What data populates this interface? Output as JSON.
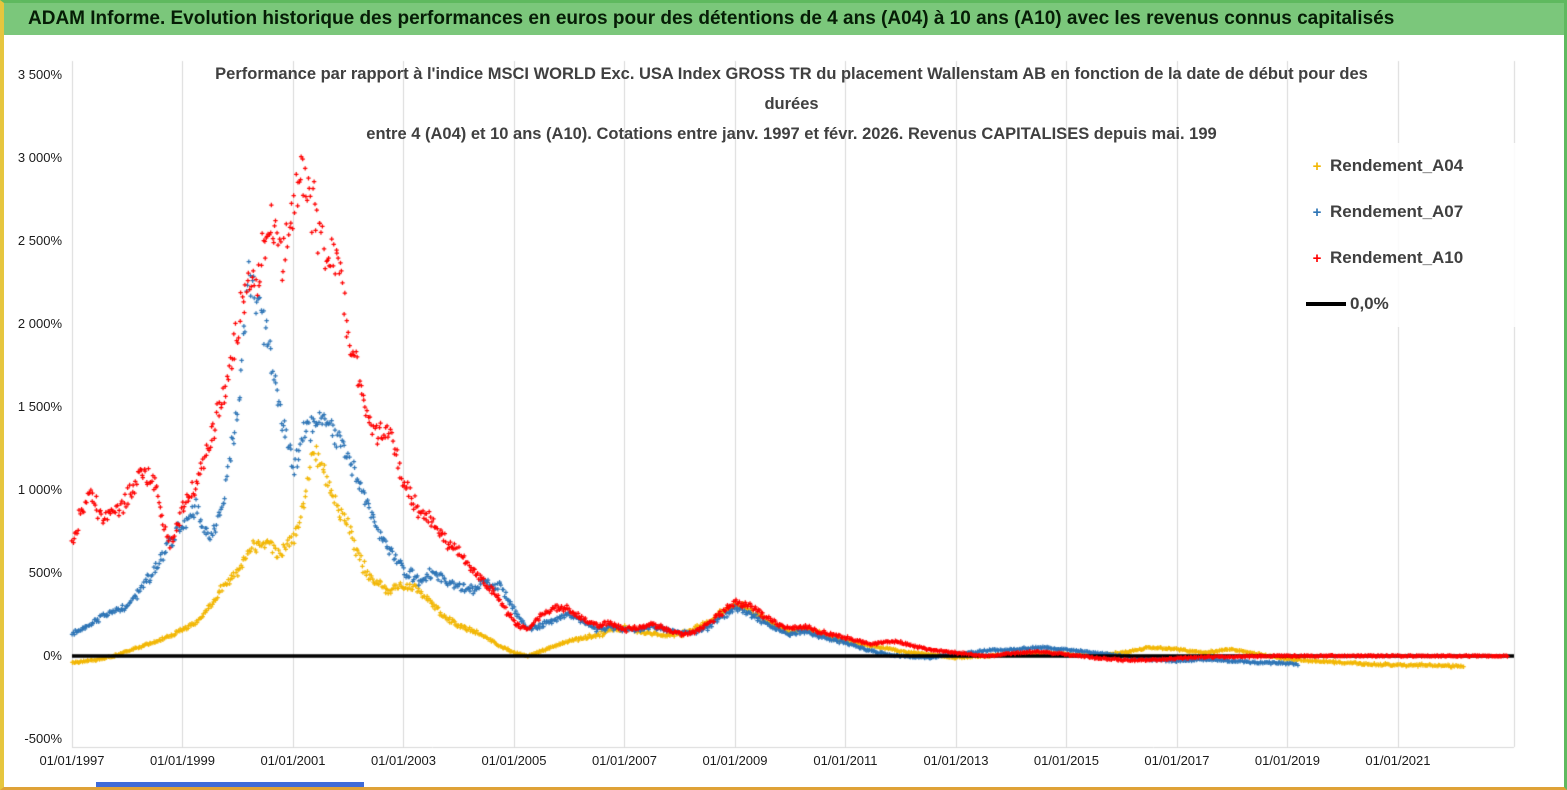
{
  "window": {
    "header_title": "ADAM Informe. Evolution historique des performances en euros pour des détentions de 4 ans (A04) à 10 ans (A10) avec les revenus connus capitalisés",
    "theme": {
      "header_bg": "#7bc77b",
      "frame_green": "#5fb95f",
      "frame_yellow": "#e6c63e",
      "frame_orange": "#dfa237",
      "scrollbar_blue": "#3f6bd8",
      "grid_gray": "#d9d9d9",
      "title_gray": "#404040"
    }
  },
  "chart_data": {
    "type": "scatter",
    "marker": "+",
    "grid": "vertical-only",
    "legend_position": "top-right",
    "title_lines": [
      "Performance par rapport à l'indice MSCI WORLD Exc. USA Index GROSS TR  du placement Wallenstam AB en fonction de la date de début pour des",
      "durées",
      "entre 4 (A04) et 10 ans (A10).  Cotations entre janv. 1997 et févr. 2026. Revenus CAPITALISES depuis mai. 199"
    ],
    "x_axis": {
      "ticks": [
        "01/01/1997",
        "01/01/1999",
        "01/01/2001",
        "01/01/2003",
        "01/01/2005",
        "01/01/2007",
        "01/01/2009",
        "01/01/2011",
        "01/01/2013",
        "01/01/2015",
        "01/01/2017",
        "01/01/2019",
        "01/01/2021"
      ],
      "tick_years": [
        1997,
        1999,
        2001,
        2003,
        2005,
        2007,
        2009,
        2011,
        2013,
        2015,
        2017,
        2019,
        2021
      ],
      "range": [
        1997,
        2023.1
      ]
    },
    "y_axis": {
      "ticks": [
        "3 500%",
        "3 000%",
        "2 500%",
        "2 000%",
        "1 500%",
        "1 000%",
        "500%",
        "0%",
        "-500%"
      ],
      "min": -500,
      "max": 3500,
      "step": 500,
      "unit": "%"
    },
    "zero_line": {
      "label": "0,0%",
      "color": "#000000",
      "value": 0
    },
    "series": [
      {
        "name": "Rendement_A04",
        "color": "#f2b705",
        "points": [
          [
            1997.0,
            -40
          ],
          [
            1997.25,
            -30
          ],
          [
            1997.5,
            -20
          ],
          [
            1997.75,
            0
          ],
          [
            1998.0,
            30
          ],
          [
            1998.25,
            55
          ],
          [
            1998.5,
            85
          ],
          [
            1998.75,
            120
          ],
          [
            1999.0,
            155
          ],
          [
            1999.25,
            200
          ],
          [
            1999.5,
            300
          ],
          [
            1999.75,
            430
          ],
          [
            2000.0,
            510
          ],
          [
            2000.25,
            640
          ],
          [
            2000.5,
            700
          ],
          [
            2000.75,
            620
          ],
          [
            2001.0,
            700
          ],
          [
            2001.2,
            900
          ],
          [
            2001.35,
            1250
          ],
          [
            2001.5,
            1150
          ],
          [
            2001.75,
            950
          ],
          [
            2002.0,
            780
          ],
          [
            2002.25,
            550
          ],
          [
            2002.5,
            430
          ],
          [
            2002.75,
            400
          ],
          [
            2003.0,
            420
          ],
          [
            2003.25,
            410
          ],
          [
            2003.5,
            330
          ],
          [
            2003.75,
            230
          ],
          [
            2004.0,
            180
          ],
          [
            2004.25,
            150
          ],
          [
            2004.5,
            115
          ],
          [
            2004.75,
            60
          ],
          [
            2005.0,
            20
          ],
          [
            2005.25,
            0
          ],
          [
            2005.5,
            30
          ],
          [
            2005.75,
            60
          ],
          [
            2006.0,
            90
          ],
          [
            2006.25,
            110
          ],
          [
            2006.5,
            125
          ],
          [
            2006.75,
            150
          ],
          [
            2007.0,
            170
          ],
          [
            2007.25,
            150
          ],
          [
            2007.5,
            135
          ],
          [
            2007.75,
            120
          ],
          [
            2008.0,
            130
          ],
          [
            2008.25,
            160
          ],
          [
            2008.5,
            205
          ],
          [
            2008.75,
            260
          ],
          [
            2009.0,
            310
          ],
          [
            2009.25,
            280
          ],
          [
            2009.5,
            230
          ],
          [
            2009.75,
            180
          ],
          [
            2010.0,
            150
          ],
          [
            2010.25,
            170
          ],
          [
            2010.5,
            140
          ],
          [
            2010.75,
            110
          ],
          [
            2011.0,
            90
          ],
          [
            2011.25,
            70
          ],
          [
            2011.5,
            60
          ],
          [
            2011.75,
            45
          ],
          [
            2012.0,
            30
          ],
          [
            2012.25,
            20
          ],
          [
            2012.5,
            10
          ],
          [
            2012.75,
            0
          ],
          [
            2013.0,
            -10
          ],
          [
            2013.5,
            0
          ],
          [
            2014.0,
            10
          ],
          [
            2014.5,
            20
          ],
          [
            2015.0,
            10
          ],
          [
            2015.5,
            0
          ],
          [
            2016.0,
            20
          ],
          [
            2016.5,
            50
          ],
          [
            2017.0,
            40
          ],
          [
            2017.5,
            20
          ],
          [
            2018.0,
            40
          ],
          [
            2018.5,
            10
          ],
          [
            2019.0,
            -20
          ],
          [
            2019.5,
            -30
          ],
          [
            2020.0,
            -40
          ],
          [
            2020.5,
            -50
          ],
          [
            2021.0,
            -55
          ],
          [
            2021.5,
            -55
          ],
          [
            2022.0,
            -60
          ],
          [
            2022.2,
            -60
          ]
        ]
      },
      {
        "name": "Rendement_A07",
        "color": "#2e75b6",
        "points": [
          [
            1997.0,
            130
          ],
          [
            1997.25,
            180
          ],
          [
            1997.5,
            230
          ],
          [
            1997.75,
            270
          ],
          [
            1998.0,
            300
          ],
          [
            1998.25,
            400
          ],
          [
            1998.5,
            520
          ],
          [
            1998.75,
            680
          ],
          [
            1999.0,
            780
          ],
          [
            1999.25,
            880
          ],
          [
            1999.5,
            700
          ],
          [
            1999.75,
            950
          ],
          [
            2000.0,
            1500
          ],
          [
            2000.2,
            2300
          ],
          [
            2000.35,
            2100
          ],
          [
            2000.5,
            1950
          ],
          [
            2000.75,
            1500
          ],
          [
            2001.0,
            1150
          ],
          [
            2001.25,
            1380
          ],
          [
            2001.5,
            1450
          ],
          [
            2001.75,
            1350
          ],
          [
            2002.0,
            1200
          ],
          [
            2002.25,
            1000
          ],
          [
            2002.5,
            800
          ],
          [
            2002.75,
            620
          ],
          [
            2003.0,
            520
          ],
          [
            2003.25,
            460
          ],
          [
            2003.5,
            500
          ],
          [
            2003.75,
            460
          ],
          [
            2004.0,
            420
          ],
          [
            2004.25,
            400
          ],
          [
            2004.5,
            450
          ],
          [
            2004.75,
            420
          ],
          [
            2005.0,
            280
          ],
          [
            2005.25,
            160
          ],
          [
            2005.5,
            185
          ],
          [
            2005.75,
            220
          ],
          [
            2006.0,
            250
          ],
          [
            2006.25,
            210
          ],
          [
            2006.5,
            160
          ],
          [
            2006.75,
            170
          ],
          [
            2007.0,
            160
          ],
          [
            2007.25,
            150
          ],
          [
            2007.5,
            180
          ],
          [
            2007.75,
            160
          ],
          [
            2008.0,
            140
          ],
          [
            2008.25,
            140
          ],
          [
            2008.5,
            170
          ],
          [
            2008.75,
            230
          ],
          [
            2009.0,
            290
          ],
          [
            2009.25,
            260
          ],
          [
            2009.5,
            210
          ],
          [
            2009.75,
            160
          ],
          [
            2010.0,
            130
          ],
          [
            2010.25,
            150
          ],
          [
            2010.5,
            120
          ],
          [
            2010.75,
            100
          ],
          [
            2011.0,
            80
          ],
          [
            2011.25,
            50
          ],
          [
            2011.5,
            30
          ],
          [
            2011.75,
            10
          ],
          [
            2012.0,
            0
          ],
          [
            2012.5,
            -10
          ],
          [
            2013.0,
            10
          ],
          [
            2013.5,
            30
          ],
          [
            2014.0,
            40
          ],
          [
            2014.5,
            50
          ],
          [
            2015.0,
            40
          ],
          [
            2015.5,
            20
          ],
          [
            2016.0,
            0
          ],
          [
            2016.5,
            -20
          ],
          [
            2017.0,
            -30
          ],
          [
            2017.5,
            -20
          ],
          [
            2018.0,
            -30
          ],
          [
            2018.5,
            -40
          ],
          [
            2019.0,
            -45
          ],
          [
            2019.2,
            -50
          ]
        ]
      },
      {
        "name": "Rendement_A10",
        "color": "#ff0000",
        "points": [
          [
            1997.0,
            650
          ],
          [
            1997.15,
            850
          ],
          [
            1997.3,
            1000
          ],
          [
            1997.45,
            900
          ],
          [
            1997.6,
            820
          ],
          [
            1997.8,
            880
          ],
          [
            1998.0,
            950
          ],
          [
            1998.25,
            1100
          ],
          [
            1998.5,
            1050
          ],
          [
            1998.65,
            800
          ],
          [
            1998.8,
            680
          ],
          [
            1999.0,
            900
          ],
          [
            1999.25,
            1050
          ],
          [
            1999.5,
            1300
          ],
          [
            1999.75,
            1600
          ],
          [
            2000.0,
            1950
          ],
          [
            2000.2,
            2350
          ],
          [
            2000.35,
            2200
          ],
          [
            2000.5,
            2500
          ],
          [
            2000.65,
            2600
          ],
          [
            2000.8,
            2350
          ],
          [
            2001.0,
            2700
          ],
          [
            2001.15,
            2950
          ],
          [
            2001.3,
            2800
          ],
          [
            2001.45,
            2550
          ],
          [
            2001.6,
            2450
          ],
          [
            2001.8,
            2350
          ],
          [
            2002.0,
            1950
          ],
          [
            2002.25,
            1600
          ],
          [
            2002.4,
            1400
          ],
          [
            2002.55,
            1350
          ],
          [
            2002.7,
            1400
          ],
          [
            2002.85,
            1250
          ],
          [
            2003.0,
            1050
          ],
          [
            2003.25,
            900
          ],
          [
            2003.5,
            800
          ],
          [
            2003.75,
            700
          ],
          [
            2004.0,
            620
          ],
          [
            2004.25,
            520
          ],
          [
            2004.5,
            430
          ],
          [
            2004.75,
            330
          ],
          [
            2005.0,
            200
          ],
          [
            2005.25,
            160
          ],
          [
            2005.5,
            250
          ],
          [
            2005.75,
            290
          ],
          [
            2006.0,
            280
          ],
          [
            2006.25,
            220
          ],
          [
            2006.5,
            180
          ],
          [
            2006.75,
            200
          ],
          [
            2007.0,
            160
          ],
          [
            2007.25,
            170
          ],
          [
            2007.5,
            190
          ],
          [
            2007.75,
            160
          ],
          [
            2008.0,
            130
          ],
          [
            2008.25,
            140
          ],
          [
            2008.5,
            190
          ],
          [
            2008.75,
            260
          ],
          [
            2009.0,
            320
          ],
          [
            2009.25,
            300
          ],
          [
            2009.5,
            250
          ],
          [
            2009.75,
            200
          ],
          [
            2010.0,
            160
          ],
          [
            2010.25,
            180
          ],
          [
            2010.5,
            150
          ],
          [
            2010.75,
            130
          ],
          [
            2011.0,
            110
          ],
          [
            2011.25,
            90
          ],
          [
            2011.5,
            70
          ],
          [
            2011.75,
            90
          ],
          [
            2012.0,
            80
          ],
          [
            2012.25,
            60
          ],
          [
            2012.5,
            40
          ],
          [
            2012.75,
            30
          ],
          [
            2013.0,
            20
          ],
          [
            2013.5,
            0
          ],
          [
            2014.0,
            15
          ],
          [
            2014.5,
            25
          ],
          [
            2015.0,
            10
          ],
          [
            2015.5,
            -10
          ],
          [
            2016.0,
            -25
          ],
          [
            2016.5,
            -25
          ],
          [
            2017.0,
            -15
          ],
          [
            2017.5,
            -5
          ],
          [
            2018.0,
            -5
          ],
          [
            2018.5,
            0
          ],
          [
            2019.0,
            0
          ],
          [
            2019.5,
            0
          ],
          [
            2020.0,
            0
          ],
          [
            2020.5,
            0
          ],
          [
            2021.0,
            0
          ],
          [
            2021.5,
            0
          ],
          [
            2022.0,
            0
          ],
          [
            2022.5,
            0
          ],
          [
            2023.0,
            0
          ]
        ]
      }
    ]
  }
}
